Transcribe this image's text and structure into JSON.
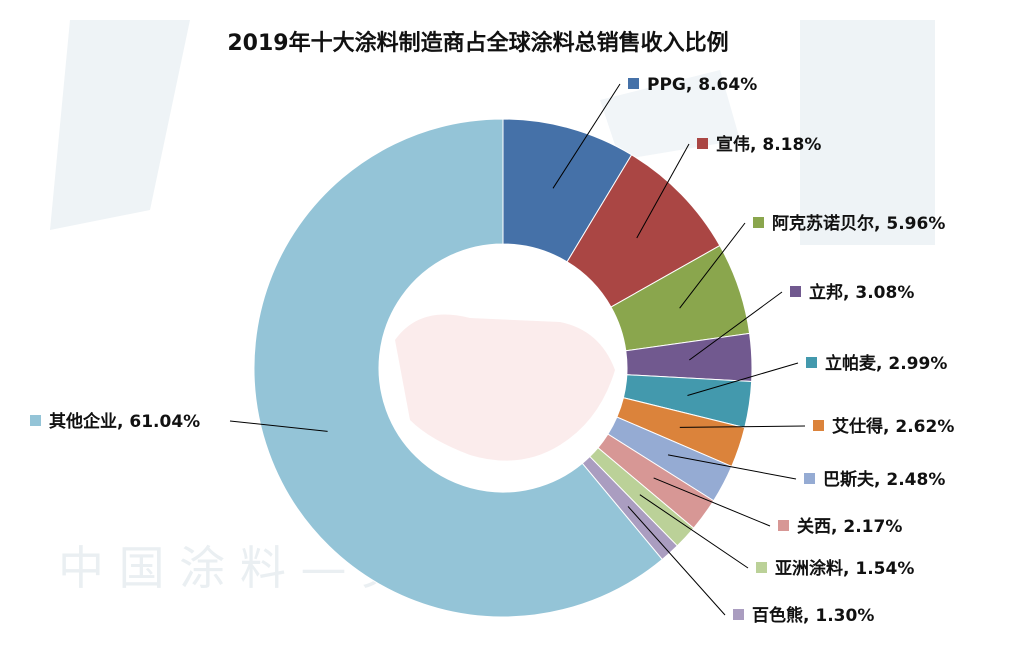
{
  "watermark": {
    "text": "中 国 涂 料 — 见 蚀 油"
  },
  "chart_data": {
    "type": "pie",
    "variant": "donut",
    "title": "2019年十大涂料制造商占全球涂料总销售收入比例",
    "categories": [
      "PPG",
      "宣伟",
      "阿克苏诺贝尔",
      "立邦",
      "立帕麦",
      "艾仕得",
      "巴斯夫",
      "关西",
      "亚洲涂料",
      "百色熊",
      "其他企业"
    ],
    "values": [
      8.64,
      8.18,
      5.96,
      3.08,
      2.99,
      2.62,
      2.48,
      2.17,
      1.54,
      1.3,
      61.04
    ],
    "colors": [
      "#4571a8",
      "#aa4644",
      "#8aa64d",
      "#71598f",
      "#4399ad",
      "#db833b",
      "#95abd3",
      "#d79795",
      "#bbd198",
      "#aa9dc0",
      "#94c4d7"
    ],
    "labels": [
      "PPG, 8.64%",
      "宣伟, 8.18%",
      "阿克苏诺贝尔, 5.96%",
      "立邦, 3.08%",
      "立帕麦, 2.99%",
      "艾仕得, 2.62%",
      "巴斯夫, 2.48%",
      "关西, 2.17%",
      "亚洲涂料, 1.54%",
      "百色熊, 1.30%",
      "其他企业, 61.04%"
    ],
    "start_angle": "12 o'clock",
    "direction": "clockwise",
    "label_style": "leader-lines with colored square markers"
  }
}
